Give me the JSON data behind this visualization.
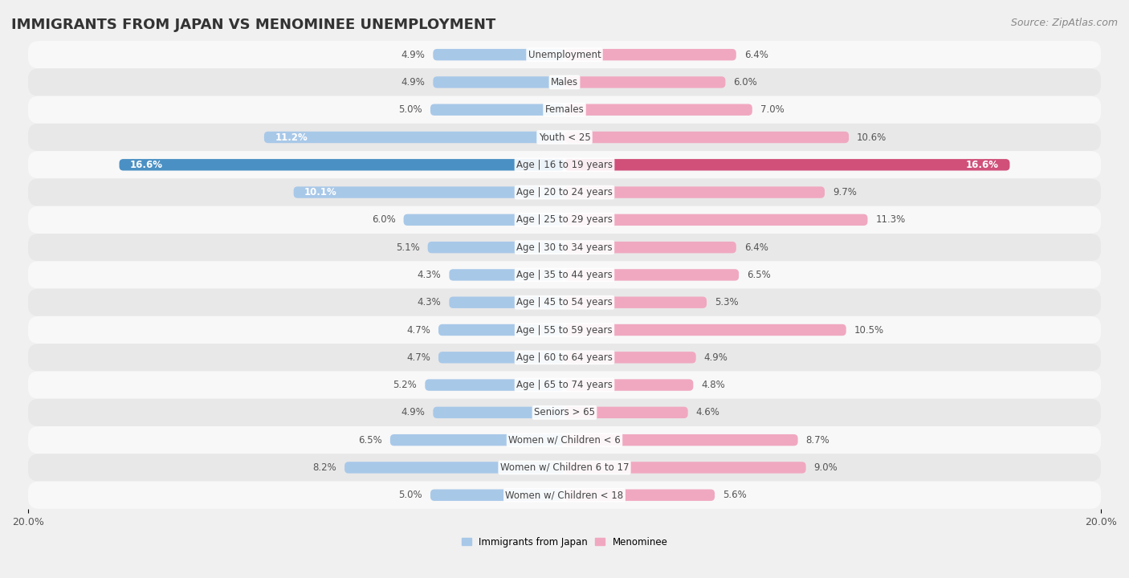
{
  "title": "IMMIGRANTS FROM JAPAN VS MENOMINEE UNEMPLOYMENT",
  "source": "Source: ZipAtlas.com",
  "categories": [
    "Unemployment",
    "Males",
    "Females",
    "Youth < 25",
    "Age | 16 to 19 years",
    "Age | 20 to 24 years",
    "Age | 25 to 29 years",
    "Age | 30 to 34 years",
    "Age | 35 to 44 years",
    "Age | 45 to 54 years",
    "Age | 55 to 59 years",
    "Age | 60 to 64 years",
    "Age | 65 to 74 years",
    "Seniors > 65",
    "Women w/ Children < 6",
    "Women w/ Children 6 to 17",
    "Women w/ Children < 18"
  ],
  "japan_values": [
    4.9,
    4.9,
    5.0,
    11.2,
    16.6,
    10.1,
    6.0,
    5.1,
    4.3,
    4.3,
    4.7,
    4.7,
    5.2,
    4.9,
    6.5,
    8.2,
    5.0
  ],
  "menominee_values": [
    6.4,
    6.0,
    7.0,
    10.6,
    16.6,
    9.7,
    11.3,
    6.4,
    6.5,
    5.3,
    10.5,
    4.9,
    4.8,
    4.6,
    8.7,
    9.0,
    5.6
  ],
  "japan_color": "#a8c8e8",
  "menominee_color": "#f0a8c0",
  "japan_highlight_color": "#4a90c4",
  "menominee_highlight_color": "#d0507a",
  "highlight_row": 4,
  "xlim": 20.0,
  "bar_height": 0.42,
  "bg_color": "#f0f0f0",
  "row_color_odd": "#f8f8f8",
  "row_color_even": "#e8e8e8",
  "label_japan": "Immigrants from Japan",
  "label_menominee": "Menominee",
  "title_fontsize": 13,
  "source_fontsize": 9,
  "tick_fontsize": 9,
  "value_fontsize": 8.5,
  "category_fontsize": 8.5
}
